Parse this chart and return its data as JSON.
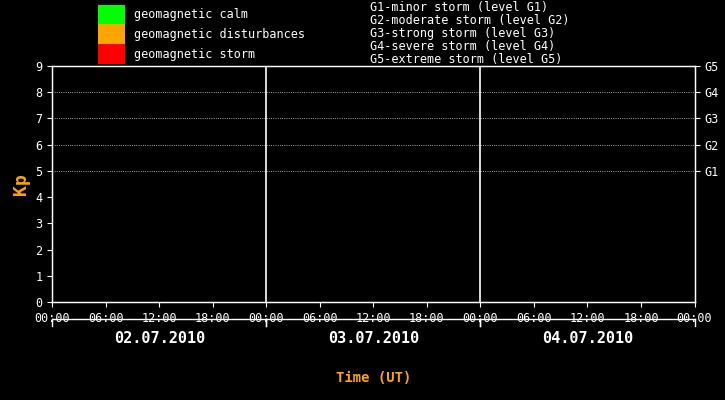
{
  "bg_color": "#000000",
  "plot_bg_color": "#000000",
  "text_color": "#ffffff",
  "axis_color": "#ffffff",
  "grid_color": "#ffffff",
  "title_x_label": "Time (UT)",
  "title_x_color": "#ffa500",
  "ylabel": "Kp",
  "ylabel_color": "#ffa500",
  "ylim": [
    0,
    9
  ],
  "yticks": [
    0,
    1,
    2,
    3,
    4,
    5,
    6,
    7,
    8,
    9
  ],
  "days": [
    "02.07.2010",
    "03.07.2010",
    "04.07.2010"
  ],
  "right_labels": [
    {
      "y": 9.0,
      "text": "G5"
    },
    {
      "y": 8.0,
      "text": "G4"
    },
    {
      "y": 7.0,
      "text": "G3"
    },
    {
      "y": 6.0,
      "text": "G2"
    },
    {
      "y": 5.0,
      "text": "G1"
    }
  ],
  "dotted_y_levels": [
    5,
    6,
    7,
    8,
    9
  ],
  "legend_items": [
    {
      "color": "#00ff00",
      "label": "geomagnetic calm"
    },
    {
      "color": "#ffa500",
      "label": "geomagnetic disturbances"
    },
    {
      "color": "#ff0000",
      "label": "geomagnetic storm"
    }
  ],
  "legend2_items": [
    "G1-minor storm (level G1)",
    "G2-moderate storm (level G2)",
    "G3-strong storm (level G3)",
    "G4-severe storm (level G4)",
    "G5-extreme storm (level G5)"
  ],
  "font_family": "monospace",
  "font_size": 8.5,
  "divider_color": "#ffffff",
  "day_label_color": "#ffffff",
  "day_label_fontsize": 11
}
